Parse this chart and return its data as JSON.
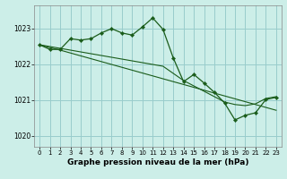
{
  "background_color": "#cceee8",
  "grid_color": "#99cccc",
  "line_color": "#1a5c1a",
  "marker_color": "#1a5c1a",
  "xlabel": "Graphe pression niveau de la mer (hPa)",
  "xlabel_fontsize": 6.5,
  "ylim": [
    1019.7,
    1023.65
  ],
  "xlim": [
    -0.5,
    23.5
  ],
  "yticks": [
    1020,
    1021,
    1022,
    1023
  ],
  "xticks": [
    0,
    1,
    2,
    3,
    4,
    5,
    6,
    7,
    8,
    9,
    10,
    11,
    12,
    13,
    14,
    15,
    16,
    17,
    18,
    19,
    20,
    21,
    22,
    23
  ],
  "series": [
    {
      "x": [
        0,
        1,
        2,
        3,
        4,
        5,
        6,
        7,
        8,
        9,
        10,
        11,
        12,
        13,
        14,
        15,
        16,
        17,
        18,
        19,
        20,
        21,
        22,
        23
      ],
      "y": [
        1022.55,
        1022.47,
        1022.4,
        1022.32,
        1022.24,
        1022.16,
        1022.08,
        1022.0,
        1021.92,
        1021.84,
        1021.76,
        1021.68,
        1021.6,
        1021.52,
        1021.44,
        1021.36,
        1021.28,
        1021.2,
        1021.12,
        1021.04,
        1020.96,
        1020.88,
        1020.8,
        1020.72
      ],
      "has_markers": false
    },
    {
      "x": [
        0,
        1,
        2,
        3,
        4,
        5,
        6,
        7,
        8,
        9,
        10,
        11,
        12,
        13,
        14,
        15,
        16,
        17,
        18,
        19,
        20,
        21,
        22,
        23
      ],
      "y": [
        1022.55,
        1022.5,
        1022.45,
        1022.4,
        1022.35,
        1022.3,
        1022.25,
        1022.2,
        1022.15,
        1022.1,
        1022.05,
        1022.0,
        1021.95,
        1021.75,
        1021.55,
        1021.4,
        1021.25,
        1021.1,
        1020.95,
        1020.88,
        1020.85,
        1020.9,
        1021.05,
        1021.1
      ],
      "has_markers": false
    },
    {
      "x": [
        0,
        1,
        2,
        3,
        4,
        5,
        6,
        7,
        8,
        9,
        10,
        11,
        12,
        13,
        14,
        15,
        16,
        17,
        18,
        19,
        20,
        21,
        22,
        23
      ],
      "y": [
        1022.55,
        1022.42,
        1022.42,
        1022.72,
        1022.68,
        1022.72,
        1022.88,
        1023.0,
        1022.88,
        1022.82,
        1023.05,
        1023.3,
        1022.98,
        1022.18,
        1021.52,
        1021.72,
        1021.48,
        1021.22,
        1020.92,
        1020.45,
        1020.58,
        1020.65,
        1021.02,
        1021.08
      ],
      "has_markers": true
    }
  ]
}
